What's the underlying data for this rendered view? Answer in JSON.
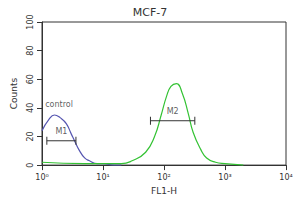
{
  "chart_data": {
    "type": "line",
    "title": "MCF-7",
    "x_label": "FL1-H",
    "y_label": "Counts",
    "log": "x",
    "xlim": [
      1,
      10000
    ],
    "xticks": [
      {
        "value": 1,
        "label": "10⁰"
      },
      {
        "value": 10,
        "label": "10¹"
      },
      {
        "value": 100,
        "label": "10²"
      },
      {
        "value": 1000,
        "label": "10³"
      },
      {
        "value": 10000,
        "label": "10⁴"
      }
    ],
    "ylim": [
      0,
      100
    ],
    "yticks": [
      0,
      20,
      40,
      60,
      80,
      100
    ],
    "grid": false,
    "series": [
      {
        "color": "#5555b0",
        "x": [
          1,
          1.3,
          1.6,
          2,
          2.5,
          3,
          3.5,
          4,
          5,
          6,
          8,
          10,
          15,
          20
        ],
        "values": [
          24,
          32,
          35,
          33,
          29,
          22,
          16,
          11,
          5,
          3,
          1,
          1,
          0,
          0
        ]
      },
      {
        "color": "#33c233",
        "x": [
          1,
          5,
          10,
          20,
          30,
          50,
          70,
          90,
          110,
          130,
          160,
          200,
          250,
          300,
          400,
          500,
          700,
          1000,
          2000
        ],
        "values": [
          2,
          1,
          1,
          1,
          3,
          9,
          20,
          35,
          48,
          55,
          57,
          50,
          36,
          23,
          11,
          5,
          2,
          1,
          0
        ]
      }
    ],
    "markers": [
      {
        "label": "M1",
        "x": [
          1.2,
          3.6
        ],
        "y": 17
      },
      {
        "label": "M2",
        "x": [
          60,
          320
        ],
        "y": 31
      }
    ],
    "annotations": [
      {
        "text": "control",
        "x": 1.9,
        "y": 42
      }
    ]
  }
}
